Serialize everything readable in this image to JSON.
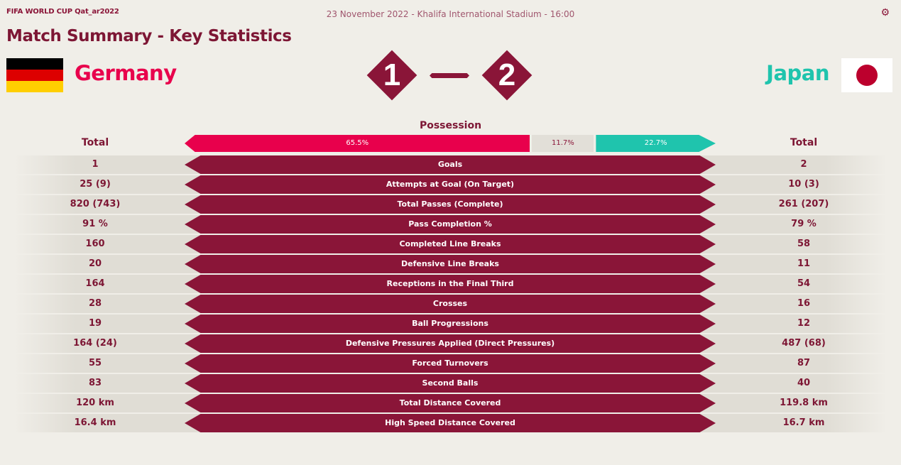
{
  "header": {
    "brand": "FIFA WORLD CUP Qat_ar2022",
    "meta": "23 November 2022 - Khalifa International Stadium - 16:00",
    "title": "Match Summary - Key Statistics"
  },
  "home": {
    "name": "Germany",
    "score": "1",
    "flag": "germany-flag",
    "color": "#e8004c"
  },
  "away": {
    "name": "Japan",
    "score": "2",
    "flag": "japan-flag",
    "color": "#1fc4ad"
  },
  "possession": {
    "label": "Possession",
    "home": "65.5%",
    "draw": "11.7%",
    "away": "22.7%",
    "home_value": 65.5,
    "draw_value": 11.7,
    "away_value": 22.7
  },
  "totals": {
    "home": "Total",
    "away": "Total"
  },
  "stats": [
    {
      "label": "Goals",
      "home": "1",
      "away": "2"
    },
    {
      "label": "Attempts at Goal (On Target)",
      "home": "25 (9)",
      "away": "10 (3)"
    },
    {
      "label": "Total Passes (Complete)",
      "home": "820 (743)",
      "away": "261 (207)"
    },
    {
      "label": "Pass Completion %",
      "home": "91 %",
      "away": "79 %"
    },
    {
      "label": "Completed Line Breaks",
      "home": "160",
      "away": "58"
    },
    {
      "label": "Defensive Line Breaks",
      "home": "20",
      "away": "11"
    },
    {
      "label": "Receptions in the Final Third",
      "home": "164",
      "away": "54"
    },
    {
      "label": "Crosses",
      "home": "28",
      "away": "16"
    },
    {
      "label": "Ball Progressions",
      "home": "19",
      "away": "12"
    },
    {
      "label": "Defensive Pressures Applied (Direct Pressures)",
      "home": "164 (24)",
      "away": "487 (68)"
    },
    {
      "label": "Forced Turnovers",
      "home": "55",
      "away": "87"
    },
    {
      "label": "Second Balls",
      "home": "83",
      "away": "40"
    },
    {
      "label": "Total Distance Covered",
      "home": "120 km",
      "away": "119.8 km"
    },
    {
      "label": "High Speed Distance Covered",
      "home": "16.4 km",
      "away": "16.7 km"
    }
  ],
  "colors": {
    "maroon": "#8a1538",
    "background": "#f0eee8"
  }
}
